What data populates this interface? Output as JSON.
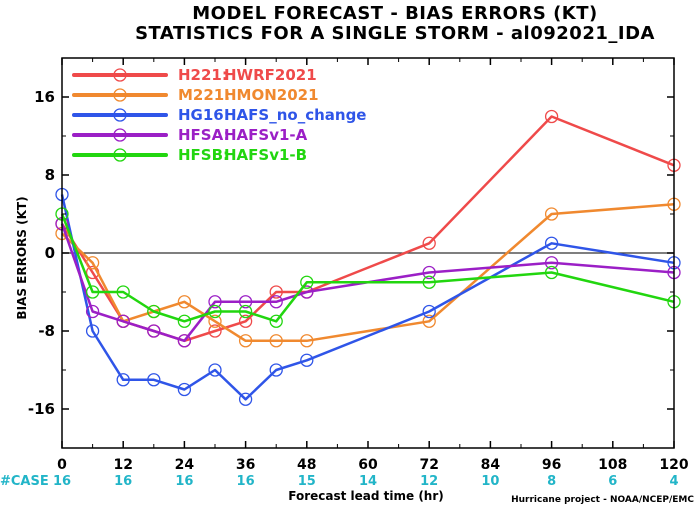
{
  "chart_data": {
    "type": "line",
    "title": "MODEL FORECAST - BIAS ERRORS (KT)",
    "subtitle": "STATISTICS FOR A SINGLE STORM - al092021_IDA",
    "xlabel": "Forecast lead time (hr)",
    "ylabel": "BIAS ERRORS (KT)",
    "xlim": [
      0,
      120
    ],
    "ylim": [
      -20,
      20
    ],
    "x_ticks": [
      0,
      12,
      24,
      36,
      48,
      60,
      72,
      84,
      96,
      108,
      120
    ],
    "y_ticks": [
      -16,
      -8,
      0,
      8,
      16
    ],
    "zero_line": true,
    "grid": false,
    "legend_position": "top-left",
    "case_label": "#CASE",
    "case_x": [
      0,
      12,
      24,
      36,
      48,
      60,
      72,
      84,
      96,
      108,
      120
    ],
    "case_counts": [
      "16",
      "16",
      "16",
      "16",
      "15",
      "14",
      "12",
      "10",
      "8",
      "6",
      "4"
    ],
    "credit": "Hurricane project - NOAA/NCEP/EMC",
    "series": [
      {
        "name": "H221:",
        "label": "HWRF2021",
        "color": "#ef4a4a",
        "points": [
          [
            0,
            3
          ],
          [
            6,
            -2
          ],
          [
            12,
            -7
          ],
          [
            18,
            -8
          ],
          [
            24,
            -9
          ],
          [
            30,
            -8
          ],
          [
            36,
            -7
          ],
          [
            42,
            -4
          ],
          [
            48,
            -4
          ],
          [
            72,
            1
          ],
          [
            96,
            14
          ],
          [
            120,
            9
          ]
        ]
      },
      {
        "name": "M221:",
        "label": "HMON2021",
        "color": "#f0892f",
        "points": [
          [
            0,
            2
          ],
          [
            6,
            -1
          ],
          [
            12,
            -7
          ],
          [
            18,
            -6
          ],
          [
            24,
            -5
          ],
          [
            30,
            -7
          ],
          [
            36,
            -9
          ],
          [
            42,
            -9
          ],
          [
            48,
            -9
          ],
          [
            72,
            -7
          ],
          [
            96,
            4
          ],
          [
            120,
            5
          ]
        ]
      },
      {
        "name": "HG16:",
        "label": "HAFS_no_change",
        "color": "#2f55e8",
        "points": [
          [
            0,
            6
          ],
          [
            6,
            -8
          ],
          [
            12,
            -13
          ],
          [
            18,
            -13
          ],
          [
            24,
            -14
          ],
          [
            30,
            -12
          ],
          [
            36,
            -15
          ],
          [
            42,
            -12
          ],
          [
            48,
            -11
          ],
          [
            72,
            -6
          ],
          [
            96,
            1
          ],
          [
            120,
            -1
          ]
        ]
      },
      {
        "name": "HFSA:",
        "label": "HAFSv1-A",
        "color": "#9b1fc6",
        "points": [
          [
            0,
            3
          ],
          [
            6,
            -6
          ],
          [
            12,
            -7
          ],
          [
            18,
            -8
          ],
          [
            24,
            -9
          ],
          [
            30,
            -5
          ],
          [
            36,
            -5
          ],
          [
            42,
            -5
          ],
          [
            48,
            -4
          ],
          [
            72,
            -2
          ],
          [
            96,
            -1
          ],
          [
            120,
            -2
          ]
        ]
      },
      {
        "name": "HFSB:",
        "label": "HAFSv1-B",
        "color": "#22d60f",
        "points": [
          [
            0,
            4
          ],
          [
            6,
            -4
          ],
          [
            12,
            -4
          ],
          [
            18,
            -6
          ],
          [
            24,
            -7
          ],
          [
            30,
            -6
          ],
          [
            36,
            -6
          ],
          [
            42,
            -7
          ],
          [
            48,
            -3
          ],
          [
            72,
            -3
          ],
          [
            96,
            -2
          ],
          [
            120,
            -5
          ]
        ]
      }
    ]
  }
}
